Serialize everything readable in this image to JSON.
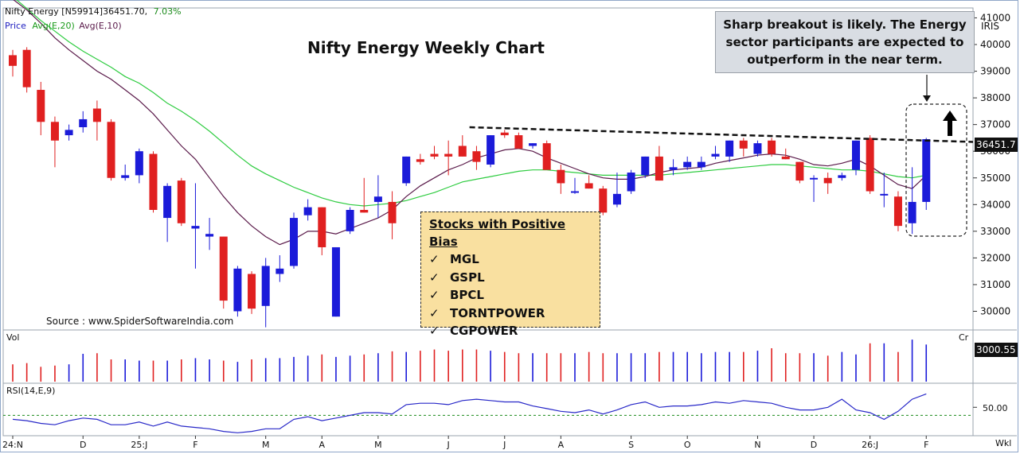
{
  "header": {
    "symbol_text": "Nifty Energy [N59914]36451.70,",
    "change_text": "7.03%",
    "legend_price": "Price",
    "legend_avg20": "Avg(E,20)",
    "legend_avg10": "Avg(E,10)"
  },
  "panels": {
    "price_scale_name": "IRIS",
    "vol_label": "Vol",
    "vol_unit": "Cr",
    "vol_last": "3000.55",
    "rsi_label": "RSI(14,E,9)",
    "rsi_level_label": "50.00",
    "period_label": "Wkl",
    "last_price_label": "36451.7"
  },
  "annotations": {
    "callout": "Sharp breakout is likely. The Energy sector participants are expected to outperform in the near term.",
    "stocks_title": "Stocks with Positive Bias",
    "check": "✓",
    "stocks": [
      "MGL",
      "GSPL",
      "BPCL",
      "TORNTPOWER",
      "CGPOWER"
    ],
    "source": "Source : www.SpiderSoftwareIndia.com"
  },
  "colors": {
    "up": "#1b1bd9",
    "down": "#e02020",
    "avg20": "#2ecc40",
    "avg10": "#5a1a4a",
    "rsi": "#2828c8",
    "rsi_ref": "#1a8a1a",
    "trendline": "#111111"
  },
  "chart_data": {
    "type": "candlestick",
    "title": "Nifty Energy Weekly Chart",
    "y_ticks": [
      30000,
      31000,
      32000,
      33000,
      34000,
      35000,
      36000,
      37000,
      38000,
      39000,
      40000,
      41000
    ],
    "ylim": [
      29300,
      42200
    ],
    "x_labels": [
      {
        "i": 0,
        "t": "24:N"
      },
      {
        "i": 5,
        "t": "D"
      },
      {
        "i": 9,
        "t": "25:J"
      },
      {
        "i": 13,
        "t": "F"
      },
      {
        "i": 18,
        "t": "M"
      },
      {
        "i": 22,
        "t": "A"
      },
      {
        "i": 26,
        "t": "M"
      },
      {
        "i": 31,
        "t": "J"
      },
      {
        "i": 35,
        "t": "J"
      },
      {
        "i": 39,
        "t": "A"
      },
      {
        "i": 44,
        "t": "S"
      },
      {
        "i": 48,
        "t": "O"
      },
      {
        "i": 53,
        "t": "N"
      },
      {
        "i": 57,
        "t": "D"
      },
      {
        "i": 61,
        "t": "26:J"
      },
      {
        "i": 65,
        "t": "F"
      }
    ],
    "candles": [
      [
        39600,
        39800,
        38800,
        39200
      ],
      [
        39800,
        39900,
        38200,
        38400
      ],
      [
        38300,
        38600,
        36600,
        37100
      ],
      [
        37100,
        37300,
        35400,
        36400
      ],
      [
        36600,
        37000,
        36400,
        36800
      ],
      [
        36900,
        37500,
        36700,
        37200
      ],
      [
        37600,
        37900,
        36400,
        37100
      ],
      [
        37100,
        37200,
        34900,
        35000
      ],
      [
        35000,
        35500,
        34900,
        35100
      ],
      [
        35100,
        36100,
        34800,
        36000
      ],
      [
        35900,
        36000,
        33700,
        33800
      ],
      [
        33500,
        34800,
        32600,
        34700
      ],
      [
        34900,
        35000,
        33200,
        33300
      ],
      [
        33100,
        34800,
        31600,
        33200
      ],
      [
        32800,
        33500,
        32300,
        32900
      ],
      [
        32800,
        32800,
        30100,
        30400
      ],
      [
        30000,
        31700,
        29800,
        31600
      ],
      [
        31400,
        31500,
        29900,
        30100
      ],
      [
        30200,
        32000,
        29400,
        31700
      ],
      [
        31400,
        32100,
        31100,
        31600
      ],
      [
        31700,
        33700,
        31600,
        33500
      ],
      [
        33600,
        34200,
        33400,
        33900
      ],
      [
        33900,
        33900,
        32100,
        32400
      ],
      [
        29800,
        32400,
        29800,
        32400
      ],
      [
        33000,
        33900,
        32900,
        33800
      ],
      [
        33800,
        35000,
        33700,
        33700
      ],
      [
        34100,
        35100,
        33500,
        34300
      ],
      [
        34100,
        34500,
        32700,
        33300
      ],
      [
        34800,
        35800,
        34700,
        35800
      ],
      [
        35700,
        35900,
        35500,
        35600
      ],
      [
        35900,
        36200,
        35700,
        35800
      ],
      [
        35900,
        36400,
        35100,
        35800
      ],
      [
        36200,
        36600,
        35800,
        35800
      ],
      [
        36000,
        36200,
        35300,
        35600
      ],
      [
        35500,
        36600,
        35400,
        36600
      ],
      [
        36700,
        36800,
        36500,
        36600
      ],
      [
        36600,
        36700,
        36100,
        36100
      ],
      [
        36200,
        36300,
        36100,
        36300
      ],
      [
        36300,
        36400,
        35300,
        35300
      ],
      [
        35300,
        35500,
        34400,
        34800
      ],
      [
        34500,
        35000,
        34400,
        34500
      ],
      [
        34800,
        35100,
        34600,
        34600
      ],
      [
        34600,
        34700,
        33600,
        33700
      ],
      [
        34000,
        35200,
        33900,
        34400
      ],
      [
        34500,
        35300,
        34400,
        35200
      ],
      [
        35100,
        35800,
        35000,
        35800
      ],
      [
        35800,
        36200,
        34900,
        34900
      ],
      [
        35300,
        35700,
        35100,
        35400
      ],
      [
        35400,
        35800,
        35300,
        35600
      ],
      [
        35400,
        35800,
        35300,
        35600
      ],
      [
        35800,
        36200,
        35700,
        35900
      ],
      [
        35800,
        36400,
        35600,
        36400
      ],
      [
        36400,
        36500,
        35800,
        36100
      ],
      [
        35900,
        36400,
        35800,
        36300
      ],
      [
        36400,
        36500,
        35800,
        35900
      ],
      [
        35800,
        36100,
        35700,
        35700
      ],
      [
        35600,
        35600,
        34800,
        34900
      ],
      [
        35000,
        35100,
        34100,
        35000
      ],
      [
        35000,
        35200,
        34400,
        34800
      ],
      [
        35000,
        35200,
        34900,
        35100
      ],
      [
        35300,
        36400,
        35100,
        36400
      ],
      [
        36500,
        36600,
        34400,
        34500
      ],
      [
        34400,
        35200,
        33900,
        34400
      ],
      [
        34300,
        34500,
        33000,
        33200
      ],
      [
        33300,
        35400,
        32900,
        34100
      ],
      [
        34100,
        36500,
        33800,
        36451.7
      ]
    ],
    "avg20": [
      41800,
      41350,
      40900,
      40500,
      40100,
      39750,
      39450,
      39150,
      38800,
      38550,
      38200,
      37800,
      37500,
      37150,
      36750,
      36300,
      35850,
      35450,
      35150,
      34900,
      34650,
      34450,
      34250,
      34100,
      34000,
      33950,
      34000,
      34050,
      34150,
      34300,
      34450,
      34650,
      34850,
      34950,
      35050,
      35150,
      35250,
      35300,
      35300,
      35250,
      35200,
      35150,
      35100,
      35100,
      35100,
      35100,
      35100,
      35150,
      35200,
      35250,
      35300,
      35350,
      35400,
      35450,
      35500,
      35500,
      35450,
      35400,
      35350,
      35300,
      35300,
      35250,
      35150,
      35050,
      35000,
      35100
    ],
    "avg10": [
      41700,
      41300,
      40800,
      40250,
      39800,
      39400,
      39000,
      38700,
      38300,
      37900,
      37400,
      36800,
      36200,
      35700,
      35000,
      34300,
      33700,
      33200,
      32800,
      32500,
      32700,
      33000,
      33000,
      32900,
      33100,
      33300,
      33500,
      33800,
      34300,
      34700,
      35000,
      35300,
      35500,
      35750,
      35900,
      36050,
      36100,
      36000,
      35750,
      35550,
      35350,
      35150,
      35000,
      34950,
      34950,
      35050,
      35200,
      35300,
      35350,
      35400,
      35550,
      35650,
      35750,
      35850,
      35900,
      35850,
      35700,
      35500,
      35450,
      35550,
      35700,
      35450,
      35100,
      34750,
      34600,
      35100
    ],
    "volume": [
      1400,
      1500,
      1200,
      1300,
      1400,
      2250,
      2300,
      1800,
      1800,
      1700,
      1700,
      1700,
      1800,
      1900,
      1800,
      1700,
      1600,
      1800,
      1900,
      1900,
      2000,
      2100,
      2200,
      2000,
      2100,
      2200,
      2300,
      2450,
      2400,
      2500,
      2600,
      2500,
      2600,
      2600,
      2500,
      2400,
      2300,
      2300,
      2300,
      2300,
      2300,
      2400,
      2300,
      2300,
      2300,
      2300,
      2400,
      2400,
      2400,
      2300,
      2400,
      2400,
      2400,
      2500,
      2700,
      2300,
      2300,
      2300,
      2100,
      2400,
      2200,
      3100,
      3100,
      2400,
      3400,
      3000.55
    ],
    "rsi": [
      41,
      40,
      38,
      37,
      40,
      42,
      41,
      37,
      37,
      39,
      36,
      39,
      36,
      35,
      34,
      32,
      31,
      32,
      34,
      34,
      41,
      43,
      40,
      42,
      44,
      46,
      46,
      45,
      52,
      53,
      53,
      52,
      55,
      56,
      55,
      54,
      54,
      51,
      49,
      47,
      46,
      48,
      45,
      48,
      52,
      54,
      50,
      51,
      51,
      52,
      54,
      53,
      55,
      54,
      53,
      50,
      48,
      48,
      50,
      56,
      48,
      46,
      41,
      47,
      56,
      60
    ],
    "rsi_signal_level": 44,
    "rsi_range": [
      30,
      62
    ]
  }
}
